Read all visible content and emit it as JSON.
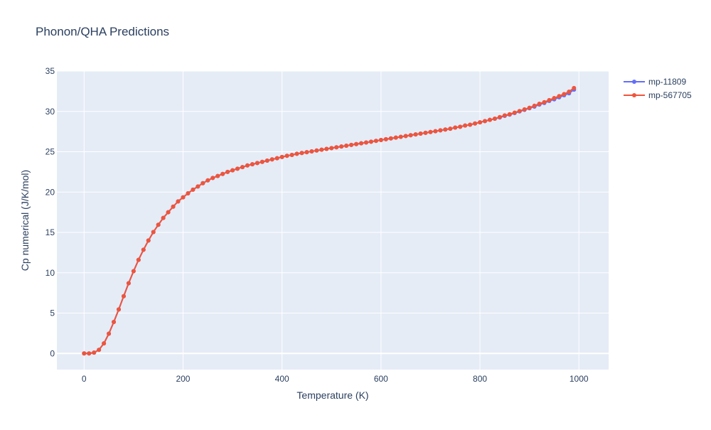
{
  "chart_data": {
    "type": "line",
    "title": "Phonon/QHA Predictions",
    "xlabel": "Temperature (K)",
    "ylabel": "Cp numerical (J/K/mol)",
    "xlim": [
      -55,
      1060
    ],
    "ylim": [
      -2,
      35
    ],
    "xticks": [
      0,
      200,
      400,
      600,
      800,
      1000
    ],
    "yticks": [
      0,
      5,
      10,
      15,
      20,
      25,
      30,
      35
    ],
    "grid": true,
    "legend_position": "top-right",
    "x": [
      0,
      10,
      20,
      30,
      40,
      50,
      60,
      70,
      80,
      90,
      100,
      110,
      120,
      130,
      140,
      150,
      160,
      170,
      180,
      190,
      200,
      210,
      220,
      230,
      240,
      250,
      260,
      270,
      280,
      290,
      300,
      310,
      320,
      330,
      340,
      350,
      360,
      370,
      380,
      390,
      400,
      410,
      420,
      430,
      440,
      450,
      460,
      470,
      480,
      490,
      500,
      510,
      520,
      530,
      540,
      550,
      560,
      570,
      580,
      590,
      600,
      610,
      620,
      630,
      640,
      650,
      660,
      670,
      680,
      690,
      700,
      710,
      720,
      730,
      740,
      750,
      760,
      770,
      780,
      790,
      800,
      810,
      820,
      830,
      840,
      850,
      860,
      870,
      880,
      890,
      900,
      910,
      920,
      930,
      940,
      950,
      960,
      970,
      980,
      990
    ],
    "series": [
      {
        "name": "mp-11809",
        "color": "#636efa",
        "values": [
          0,
          0,
          0.1,
          0.45,
          1.25,
          2.45,
          3.9,
          5.45,
          7.1,
          8.7,
          10.2,
          11.6,
          12.85,
          14.0,
          15.05,
          15.95,
          16.8,
          17.5,
          18.2,
          18.85,
          19.35,
          19.85,
          20.3,
          20.7,
          21.1,
          21.45,
          21.75,
          22.0,
          22.25,
          22.5,
          22.7,
          22.9,
          23.1,
          23.3,
          23.45,
          23.6,
          23.75,
          23.9,
          24.05,
          24.2,
          24.35,
          24.5,
          24.6,
          24.75,
          24.85,
          24.95,
          25.05,
          25.15,
          25.25,
          25.35,
          25.45,
          25.55,
          25.65,
          25.75,
          25.85,
          25.95,
          26.05,
          26.15,
          26.25,
          26.35,
          26.45,
          26.55,
          26.65,
          26.75,
          26.85,
          26.95,
          27.05,
          27.15,
          27.25,
          27.35,
          27.45,
          27.55,
          27.65,
          27.75,
          27.85,
          28.0,
          28.1,
          28.25,
          28.35,
          28.5,
          28.65,
          28.8,
          28.95,
          29.1,
          29.25,
          29.45,
          29.6,
          29.8,
          30.0,
          30.2,
          30.4,
          30.6,
          30.85,
          31.05,
          31.3,
          31.5,
          31.75,
          32.0,
          32.25,
          32.7
        ]
      },
      {
        "name": "mp-567705",
        "color": "#ef553b",
        "values": [
          0,
          0,
          0.1,
          0.45,
          1.25,
          2.45,
          3.9,
          5.45,
          7.1,
          8.7,
          10.2,
          11.6,
          12.85,
          14.0,
          15.05,
          15.95,
          16.8,
          17.5,
          18.2,
          18.85,
          19.35,
          19.85,
          20.3,
          20.7,
          21.1,
          21.45,
          21.75,
          22.0,
          22.25,
          22.5,
          22.7,
          22.9,
          23.1,
          23.3,
          23.45,
          23.6,
          23.75,
          23.9,
          24.05,
          24.2,
          24.35,
          24.5,
          24.6,
          24.75,
          24.85,
          24.95,
          25.05,
          25.15,
          25.25,
          25.35,
          25.45,
          25.55,
          25.65,
          25.75,
          25.85,
          25.95,
          26.05,
          26.15,
          26.25,
          26.35,
          26.45,
          26.55,
          26.65,
          26.75,
          26.85,
          26.95,
          27.05,
          27.15,
          27.25,
          27.35,
          27.45,
          27.55,
          27.65,
          27.75,
          27.85,
          28.0,
          28.1,
          28.25,
          28.35,
          28.5,
          28.65,
          28.8,
          28.95,
          29.1,
          29.3,
          29.5,
          29.65,
          29.85,
          30.05,
          30.25,
          30.45,
          30.7,
          30.95,
          31.15,
          31.4,
          31.65,
          31.9,
          32.15,
          32.45,
          32.9
        ]
      }
    ]
  }
}
